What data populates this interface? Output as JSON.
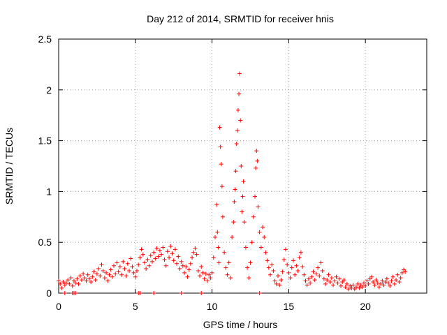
{
  "chart_data": {
    "type": "scatter",
    "title": "Day 212 of 2014, SRMTID for receiver hnis",
    "xlabel": "GPS time / hours",
    "ylabel": "SRMTID / TECUs",
    "xlim": [
      0,
      24
    ],
    "ylim": [
      0,
      2.5
    ],
    "xticks": [
      0,
      5,
      10,
      15,
      20
    ],
    "yticks": [
      0,
      0.5,
      1,
      1.5,
      2,
      2.5
    ],
    "xtick_labels": [
      "0",
      "5",
      "10",
      "15",
      "20"
    ],
    "ytick_labels": [
      "0",
      "0.5",
      "1",
      "1.5",
      "2",
      "2.5"
    ],
    "grid": true,
    "marker": "+",
    "marker_color": "#ff0000",
    "series": [
      {
        "name": "SRMTID",
        "points": [
          [
            0.0,
            0.12
          ],
          [
            0.1,
            0.09
          ],
          [
            0.2,
            0.05
          ],
          [
            0.3,
            0.11
          ],
          [
            0.4,
            0.08
          ],
          [
            0.5,
            0.1
          ],
          [
            0.6,
            0.13
          ],
          [
            0.7,
            0.09
          ],
          [
            0.8,
            0.15
          ],
          [
            0.9,
            0.07
          ],
          [
            1.0,
            0.12
          ],
          [
            1.1,
            0.1
          ],
          [
            1.2,
            0.14
          ],
          [
            1.3,
            0.09
          ],
          [
            1.4,
            0.17
          ],
          [
            1.5,
            0.13
          ],
          [
            1.6,
            0.19
          ],
          [
            1.7,
            0.15
          ],
          [
            1.8,
            0.12
          ],
          [
            1.9,
            0.18
          ],
          [
            2.0,
            0.14
          ],
          [
            2.1,
            0.11
          ],
          [
            2.2,
            0.16
          ],
          [
            2.3,
            0.21
          ],
          [
            2.4,
            0.13
          ],
          [
            2.5,
            0.19
          ],
          [
            2.6,
            0.24
          ],
          [
            2.7,
            0.17
          ],
          [
            2.8,
            0.28
          ],
          [
            2.9,
            0.22
          ],
          [
            3.0,
            0.15
          ],
          [
            3.1,
            0.2
          ],
          [
            3.2,
            0.12
          ],
          [
            3.3,
            0.18
          ],
          [
            3.4,
            0.23
          ],
          [
            3.5,
            0.16
          ],
          [
            3.6,
            0.27
          ],
          [
            3.7,
            0.19
          ],
          [
            3.8,
            0.3
          ],
          [
            3.9,
            0.21
          ],
          [
            4.0,
            0.26
          ],
          [
            4.1,
            0.18
          ],
          [
            4.2,
            0.31
          ],
          [
            4.3,
            0.24
          ],
          [
            4.4,
            0.17
          ],
          [
            4.5,
            0.29
          ],
          [
            4.6,
            0.22
          ],
          [
            4.7,
            0.34
          ],
          [
            4.8,
            0.26
          ],
          [
            4.9,
            0.2
          ],
          [
            5.0,
            0.16
          ],
          [
            5.1,
            0.22
          ],
          [
            5.2,
            0.28
          ],
          [
            5.3,
            0.35
          ],
          [
            5.4,
            0.43
          ],
          [
            5.5,
            0.38
          ],
          [
            5.6,
            0.3
          ],
          [
            5.7,
            0.24
          ],
          [
            5.8,
            0.33
          ],
          [
            5.9,
            0.27
          ],
          [
            6.0,
            0.37
          ],
          [
            6.1,
            0.31
          ],
          [
            6.2,
            0.4
          ],
          [
            6.3,
            0.34
          ],
          [
            6.4,
            0.44
          ],
          [
            6.5,
            0.36
          ],
          [
            6.6,
            0.42
          ],
          [
            6.7,
            0.38
          ],
          [
            6.8,
            0.45
          ],
          [
            6.9,
            0.33
          ],
          [
            7.0,
            0.27
          ],
          [
            7.1,
            0.41
          ],
          [
            7.2,
            0.35
          ],
          [
            7.3,
            0.46
          ],
          [
            7.4,
            0.39
          ],
          [
            7.5,
            0.32
          ],
          [
            7.6,
            0.43
          ],
          [
            7.7,
            0.29
          ],
          [
            7.8,
            0.36
          ],
          [
            7.9,
            0.24
          ],
          [
            8.0,
            0.31
          ],
          [
            8.1,
            0.27
          ],
          [
            8.2,
            0.2
          ],
          [
            8.3,
            0.26
          ],
          [
            8.4,
            0.16
          ],
          [
            8.5,
            0.23
          ],
          [
            8.6,
            0.29
          ],
          [
            8.7,
            0.35
          ],
          [
            8.8,
            0.4
          ],
          [
            8.9,
            0.44
          ],
          [
            9.0,
            0.38
          ],
          [
            9.1,
            0.22
          ],
          [
            9.2,
            0.17
          ],
          [
            9.3,
            0.26
          ],
          [
            9.4,
            0.2
          ],
          [
            9.5,
            0.14
          ],
          [
            9.6,
            0.19
          ],
          [
            9.7,
            0.12
          ],
          [
            9.8,
            0.18
          ],
          [
            9.9,
            0.15
          ],
          [
            10.0,
            0.2
          ],
          [
            10.1,
            0.35
          ],
          [
            10.2,
            0.55
          ],
          [
            10.3,
            0.87
          ],
          [
            10.35,
            0.6
          ],
          [
            10.4,
            0.45
          ],
          [
            10.45,
            0.3
          ],
          [
            10.5,
            1.63
          ],
          [
            10.55,
            1.44
          ],
          [
            10.6,
            1.27
          ],
          [
            10.65,
            1.05
          ],
          [
            10.7,
            0.75
          ],
          [
            10.8,
            0.4
          ],
          [
            10.9,
            0.25
          ],
          [
            11.0,
            0.18
          ],
          [
            11.1,
            0.3
          ],
          [
            11.2,
            0.15
          ],
          [
            11.3,
            0.55
          ],
          [
            11.4,
            0.7
          ],
          [
            11.45,
            0.9
          ],
          [
            11.5,
            1.02
          ],
          [
            11.55,
            1.2
          ],
          [
            11.6,
            1.47
          ],
          [
            11.65,
            1.6
          ],
          [
            11.7,
            1.8
          ],
          [
            11.75,
            1.96
          ],
          [
            11.8,
            2.16
          ],
          [
            11.85,
            1.7
          ],
          [
            11.9,
            1.25
          ],
          [
            11.95,
            0.8
          ],
          [
            12.0,
            0.95
          ],
          [
            12.05,
            1.1
          ],
          [
            12.1,
            0.7
          ],
          [
            12.2,
            0.45
          ],
          [
            12.3,
            0.25
          ],
          [
            12.4,
            0.15
          ],
          [
            12.5,
            0.3
          ],
          [
            12.6,
            0.5
          ],
          [
            12.7,
            0.75
          ],
          [
            12.8,
            0.95
          ],
          [
            12.85,
            1.23
          ],
          [
            12.9,
            1.4
          ],
          [
            12.95,
            1.3
          ],
          [
            13.0,
            0.85
          ],
          [
            13.1,
            0.6
          ],
          [
            13.2,
            0.45
          ],
          [
            13.3,
            0.65
          ],
          [
            13.4,
            0.55
          ],
          [
            13.5,
            0.4
          ],
          [
            13.6,
            0.32
          ],
          [
            13.7,
            0.25
          ],
          [
            13.8,
            0.18
          ],
          [
            13.9,
            0.28
          ],
          [
            14.0,
            0.22
          ],
          [
            14.1,
            0.12
          ],
          [
            14.2,
            0.09
          ],
          [
            14.3,
            0.17
          ],
          [
            14.4,
            0.08
          ],
          [
            14.5,
            0.13
          ],
          [
            14.6,
            0.21
          ],
          [
            14.7,
            0.33
          ],
          [
            14.8,
            0.43
          ],
          [
            14.9,
            0.28
          ],
          [
            15.0,
            0.2
          ],
          [
            15.1,
            0.15
          ],
          [
            15.2,
            0.25
          ],
          [
            15.3,
            0.32
          ],
          [
            15.4,
            0.18
          ],
          [
            15.5,
            0.27
          ],
          [
            15.6,
            0.22
          ],
          [
            15.7,
            0.35
          ],
          [
            15.8,
            0.4
          ],
          [
            15.9,
            0.26
          ],
          [
            16.0,
            0.18
          ],
          [
            16.1,
            0.12
          ],
          [
            16.2,
            0.08
          ],
          [
            16.3,
            0.14
          ],
          [
            16.4,
            0.1
          ],
          [
            16.5,
            0.16
          ],
          [
            16.6,
            0.21
          ],
          [
            16.7,
            0.13
          ],
          [
            16.8,
            0.19
          ],
          [
            16.9,
            0.25
          ],
          [
            17.0,
            0.17
          ],
          [
            17.1,
            0.3
          ],
          [
            17.2,
            0.22
          ],
          [
            17.3,
            0.14
          ],
          [
            17.4,
            0.09
          ],
          [
            17.5,
            0.13
          ],
          [
            17.6,
            0.18
          ],
          [
            17.7,
            0.11
          ],
          [
            17.8,
            0.15
          ],
          [
            17.9,
            0.08
          ],
          [
            18.0,
            0.12
          ],
          [
            18.1,
            0.16
          ],
          [
            18.2,
            0.1
          ],
          [
            18.3,
            0.14
          ],
          [
            18.4,
            0.07
          ],
          [
            18.5,
            0.11
          ],
          [
            18.6,
            0.13
          ],
          [
            18.7,
            0.06
          ],
          [
            18.8,
            0.09
          ],
          [
            18.9,
            0.04
          ],
          [
            19.0,
            0.07
          ],
          [
            19.1,
            0.05
          ],
          [
            19.2,
            0.08
          ],
          [
            19.3,
            0.04
          ],
          [
            19.4,
            0.06
          ],
          [
            19.5,
            0.09
          ],
          [
            19.6,
            0.05
          ],
          [
            19.7,
            0.08
          ],
          [
            19.8,
            0.06
          ],
          [
            19.9,
            0.1
          ],
          [
            20.0,
            0.07
          ],
          [
            20.1,
            0.12
          ],
          [
            20.2,
            0.09
          ],
          [
            20.3,
            0.14
          ],
          [
            20.4,
            0.16
          ],
          [
            20.5,
            0.11
          ],
          [
            20.6,
            0.08
          ],
          [
            20.7,
            0.13
          ],
          [
            20.8,
            0.1
          ],
          [
            20.9,
            0.06
          ],
          [
            21.0,
            0.09
          ],
          [
            21.1,
            0.12
          ],
          [
            21.2,
            0.08
          ],
          [
            21.3,
            0.11
          ],
          [
            21.4,
            0.14
          ],
          [
            21.5,
            0.1
          ],
          [
            21.6,
            0.07
          ],
          [
            21.7,
            0.12
          ],
          [
            21.8,
            0.16
          ],
          [
            21.9,
            0.09
          ],
          [
            22.0,
            0.13
          ],
          [
            22.1,
            0.18
          ],
          [
            22.2,
            0.11
          ],
          [
            22.3,
            0.15
          ],
          [
            22.4,
            0.2
          ],
          [
            22.5,
            0.23
          ],
          [
            22.6,
            0.21
          ],
          [
            0.9,
            0.0
          ],
          [
            1.0,
            0.0
          ],
          [
            1.1,
            0.0
          ],
          [
            5.2,
            0.0
          ],
          [
            5.3,
            0.0
          ],
          [
            6.2,
            0.0
          ],
          [
            8.0,
            0.0
          ],
          [
            9.3,
            0.0
          ],
          [
            0.4,
            0.0
          ],
          [
            13.1,
            0.0
          ]
        ]
      }
    ]
  }
}
